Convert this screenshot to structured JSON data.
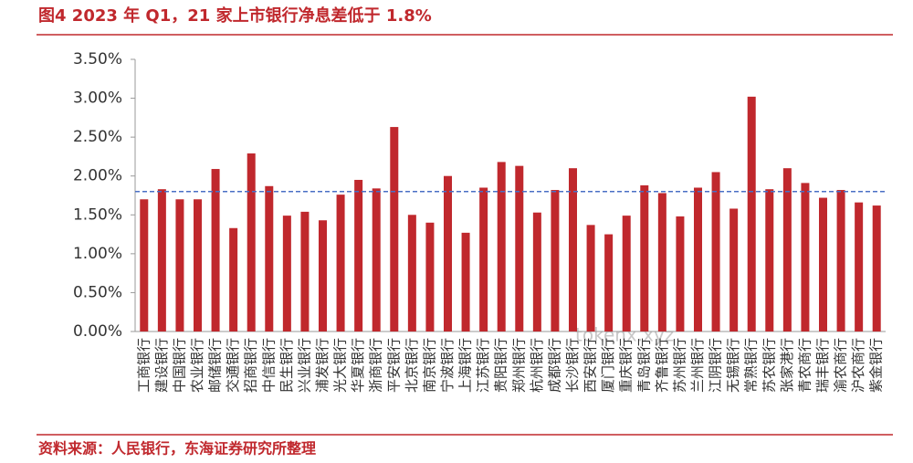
{
  "chart_data": {
    "type": "bar",
    "title": "图4  2023 年 Q1，21 家上市银行净息差低于 1.8%",
    "source": "资料来源：人民银行，东海证券研究所整理",
    "watermark": "tokenx.xyz",
    "categories": [
      "工商银行",
      "建设银行",
      "中国银行",
      "农业银行",
      "邮储银行",
      "交通银行",
      "招商银行",
      "中信银行",
      "民生银行",
      "兴业银行",
      "浦发银行",
      "光大银行",
      "华夏银行",
      "浙商银行",
      "平安银行",
      "北京银行",
      "南京银行",
      "宁波银行",
      "上海银行",
      "江苏银行",
      "贵阳银行",
      "郑州银行",
      "杭州银行",
      "成都银行",
      "长沙银行",
      "西安银行",
      "厦门银行",
      "重庆银行",
      "青岛银行",
      "齐鲁银行",
      "苏州银行",
      "兰州银行",
      "江阴银行",
      "无锡银行",
      "常熟银行",
      "苏农银行",
      "张家港行",
      "青农商行",
      "瑞丰银行",
      "渝农商行",
      "沪农商行",
      "紫金银行"
    ],
    "values": [
      1.7,
      1.83,
      1.7,
      1.7,
      2.09,
      1.33,
      2.29,
      1.87,
      1.49,
      1.54,
      1.43,
      1.76,
      1.95,
      1.84,
      2.63,
      1.5,
      1.4,
      2.0,
      1.27,
      1.85,
      2.18,
      2.13,
      1.53,
      1.82,
      2.1,
      1.37,
      1.25,
      1.49,
      1.88,
      1.78,
      1.48,
      1.85,
      2.05,
      1.58,
      3.02,
      1.83,
      2.1,
      1.91,
      1.72,
      1.82,
      1.66,
      1.62
    ],
    "color": "#c0282d",
    "reference_line": 1.8,
    "reference_color": "#4a6fc4",
    "ylim": [
      0,
      3.5
    ],
    "yticks": [
      {
        "value": 0,
        "label": "0.00%"
      },
      {
        "value": 0.5,
        "label": "0.50%"
      },
      {
        "value": 1,
        "label": "1.00%"
      },
      {
        "value": 1.5,
        "label": "1.50%"
      },
      {
        "value": 2,
        "label": "2.00%"
      },
      {
        "value": 2.5,
        "label": "2.50%"
      },
      {
        "value": 3,
        "label": "3.00%"
      },
      {
        "value": 3.5,
        "label": "3.50%"
      }
    ]
  }
}
